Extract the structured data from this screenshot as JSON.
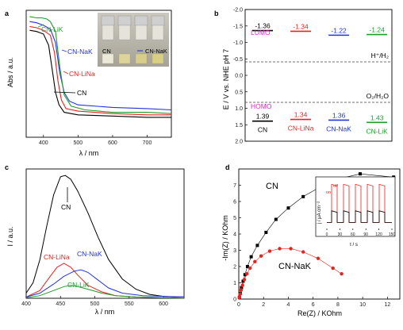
{
  "colors": {
    "CN": "#000000",
    "LiNa": "#e8221f",
    "NaK": "#2233dd",
    "LiK": "#1e9c2a",
    "LUMO": "#e020d0",
    "HOMO": "#e020d0"
  },
  "chart_data": [
    {
      "panel": "a",
      "type": "line",
      "xlabel": "λ / nm",
      "ylabel": "Abs / a.u.",
      "xlim": [
        350,
        770
      ],
      "xticks": [
        400,
        500,
        600,
        700
      ],
      "series": [
        {
          "name": "CN",
          "color": "CN",
          "x": [
            360,
            380,
            400,
            415,
            425,
            435,
            445,
            460,
            500,
            600,
            700,
            770
          ],
          "y": [
            0.86,
            0.85,
            0.83,
            0.74,
            0.55,
            0.36,
            0.26,
            0.2,
            0.18,
            0.17,
            0.16,
            0.16
          ]
        },
        {
          "name": "CN-LiNa",
          "color": "LiNa",
          "x": [
            360,
            380,
            400,
            420,
            432,
            442,
            452,
            465,
            500,
            600,
            700,
            770
          ],
          "y": [
            0.89,
            0.88,
            0.86,
            0.82,
            0.68,
            0.45,
            0.3,
            0.23,
            0.21,
            0.19,
            0.18,
            0.18
          ]
        },
        {
          "name": "CN-NaK",
          "color": "NaK",
          "x": [
            360,
            380,
            400,
            420,
            435,
            447,
            460,
            475,
            500,
            600,
            700,
            770
          ],
          "y": [
            0.93,
            0.92,
            0.9,
            0.87,
            0.76,
            0.52,
            0.36,
            0.29,
            0.26,
            0.24,
            0.23,
            0.22
          ]
        },
        {
          "name": "CN-LiK",
          "color": "LiK",
          "x": [
            360,
            380,
            395,
            410,
            420,
            435,
            448,
            460,
            480,
            520,
            600,
            700,
            770
          ],
          "y": [
            0.97,
            0.96,
            0.96,
            0.95,
            0.93,
            0.85,
            0.55,
            0.34,
            0.25,
            0.22,
            0.2,
            0.2,
            0.19
          ]
        }
      ],
      "labels": [
        {
          "text": "CN-LiK",
          "color": "LiK"
        },
        {
          "text": "CN-NaK",
          "color": "NaK"
        },
        {
          "text": "CN-LiNa",
          "color": "LiNa"
        },
        {
          "text": "CN",
          "color": "CN"
        }
      ],
      "inset": {
        "vials": [
          "CN",
          "CN-NaK"
        ]
      }
    },
    {
      "panel": "b",
      "type": "bar",
      "ylabel": "E / V vs. NHE pH 7",
      "ylim": [
        -2.0,
        2.0
      ],
      "yticks": [
        "-2.0",
        "-1.5",
        "-1.0",
        "-0.5",
        "0.0",
        "0.5",
        "1.0",
        "1.5",
        "2.0"
      ],
      "categories": [
        "CN",
        "CN-LiNa",
        "CN-NaK",
        "CN-LiK"
      ],
      "category_colors": [
        "CN",
        "LiNa",
        "NaK",
        "LiK"
      ],
      "lumo": [
        -1.36,
        -1.34,
        -1.22,
        -1.24
      ],
      "homo": [
        1.39,
        1.34,
        1.36,
        1.43
      ],
      "lumo_labels": [
        "-1.36",
        "-1.34",
        "-1.22",
        "-1.24"
      ],
      "homo_labels": [
        "1.39",
        "1.34",
        "1.36",
        "1.43"
      ],
      "lumo_text": "LUMO",
      "homo_text": "HOMO",
      "reference_lines": [
        {
          "label": "H⁺/H₂",
          "value": -0.41
        },
        {
          "label": "O₂/H₂O",
          "value": 0.82
        }
      ]
    },
    {
      "panel": "c",
      "type": "line",
      "xlabel": "λ / nm",
      "ylabel": "I / a.u.",
      "xlim": [
        400,
        630
      ],
      "xticks": [
        400,
        450,
        500,
        550,
        600
      ],
      "ylim": [
        0,
        1.0
      ],
      "series": [
        {
          "name": "CN",
          "color": "CN",
          "x": [
            400,
            410,
            420,
            430,
            440,
            450,
            457,
            465,
            475,
            490,
            505,
            520,
            540,
            560,
            580,
            600,
            615,
            630
          ],
          "y": [
            0.04,
            0.12,
            0.3,
            0.56,
            0.8,
            0.94,
            0.95,
            0.92,
            0.83,
            0.66,
            0.47,
            0.3,
            0.15,
            0.07,
            0.03,
            0.015,
            0.01,
            0.01
          ]
        },
        {
          "name": "CN-LiNa",
          "color": "LiNa",
          "x": [
            400,
            420,
            435,
            445,
            455,
            465,
            475,
            490,
            510,
            530,
            560,
            630
          ],
          "y": [
            0.01,
            0.06,
            0.17,
            0.24,
            0.27,
            0.24,
            0.18,
            0.1,
            0.05,
            0.02,
            0.01,
            0.0
          ]
        },
        {
          "name": "CN-NaK",
          "color": "NaK",
          "x": [
            400,
            420,
            440,
            455,
            470,
            480,
            490,
            505,
            520,
            540,
            570,
            630
          ],
          "y": [
            0.01,
            0.04,
            0.11,
            0.17,
            0.21,
            0.22,
            0.2,
            0.14,
            0.08,
            0.04,
            0.02,
            0.01
          ]
        },
        {
          "name": "CN-LiK",
          "color": "LiK",
          "x": [
            400,
            420,
            440,
            455,
            465,
            475,
            490,
            510,
            530,
            560,
            630
          ],
          "y": [
            0.005,
            0.02,
            0.06,
            0.09,
            0.1,
            0.09,
            0.07,
            0.04,
            0.02,
            0.01,
            0.0
          ]
        }
      ],
      "labels": [
        {
          "text": "CN",
          "color": "CN"
        },
        {
          "text": "CN-NaK",
          "color": "NaK"
        },
        {
          "text": "CN-LiNa",
          "color": "LiNa"
        },
        {
          "text": "CN-LiK",
          "color": "LiK"
        }
      ]
    },
    {
      "panel": "d",
      "type": "scatter",
      "xlabel": "Re(Z) / KOhm",
      "ylabel": "-Im(Z) / KOhm",
      "xlim": [
        0,
        13
      ],
      "ylim": [
        0,
        8
      ],
      "xticks": [
        0,
        2,
        4,
        6,
        8,
        10,
        12
      ],
      "yticks": [
        0,
        1,
        2,
        3,
        4,
        5,
        6,
        7
      ],
      "series": [
        {
          "name": "CN",
          "color": "CN",
          "marker": "square",
          "x": [
            0.05,
            0.12,
            0.22,
            0.35,
            0.5,
            0.7,
            1.0,
            1.5,
            2.2,
            3.0,
            4.0,
            5.2,
            6.6,
            8.1,
            9.8,
            12.5
          ],
          "y": [
            0.1,
            0.35,
            0.7,
            1.1,
            1.5,
            2.0,
            2.6,
            3.3,
            4.1,
            4.9,
            5.6,
            6.3,
            6.9,
            7.4,
            7.7,
            7.5
          ]
        },
        {
          "name": "CN-NaK",
          "color": "LiNa",
          "marker": "circle",
          "x": [
            0.05,
            0.1,
            0.18,
            0.3,
            0.45,
            0.65,
            0.9,
            1.3,
            1.8,
            2.5,
            3.3,
            4.2,
            5.2,
            6.4,
            7.6,
            8.3
          ],
          "y": [
            0.1,
            0.3,
            0.55,
            0.85,
            1.2,
            1.55,
            1.9,
            2.3,
            2.65,
            2.95,
            3.1,
            3.1,
            2.9,
            2.5,
            1.9,
            1.55
          ]
        }
      ],
      "labels": [
        {
          "text": "CN",
          "color": "CN"
        },
        {
          "text": "CN-NaK",
          "color": "CN"
        }
      ],
      "inset": {
        "type": "line",
        "xlabel": "t / s",
        "ylabel": "j / μA cm⁻²",
        "xticks": [
          "0",
          "30",
          "60",
          "90",
          "120",
          "150"
        ],
        "annotations": [
          "on",
          "off"
        ],
        "series": [
          {
            "name": "CN-NaK",
            "color": "LiNa",
            "levels": [
              0.15,
              0.9
            ]
          },
          {
            "name": "CN",
            "color": "CN",
            "levels": [
              0.15,
              0.38
            ]
          }
        ]
      }
    }
  ],
  "panel_letters": [
    "a",
    "b",
    "c",
    "d"
  ]
}
